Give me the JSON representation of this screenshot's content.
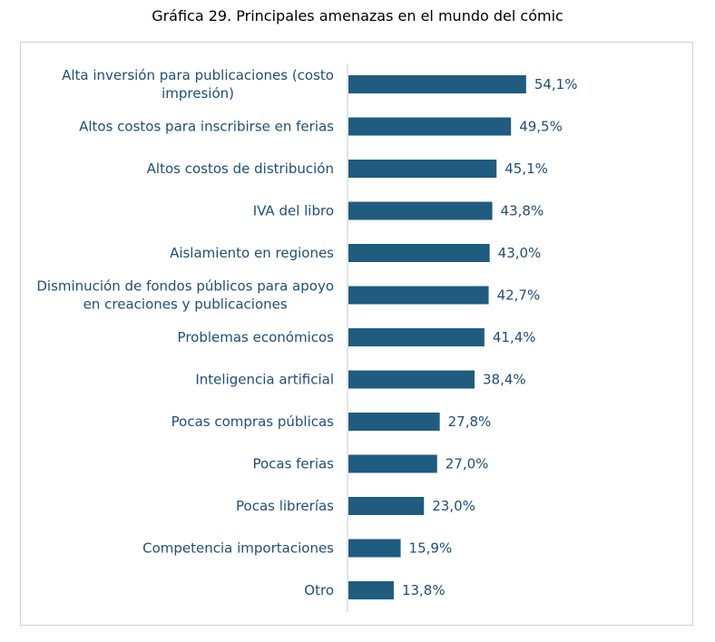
{
  "title": "Gráfica 29. Principales amenazas en el mundo del cómic",
  "chart_data": {
    "type": "bar",
    "orientation": "horizontal",
    "categories": [
      "Alta inversión para publicaciones (costo impresión)",
      "Altos costos para inscribirse en ferias",
      "Altos costos de distribución",
      "IVA del libro",
      "Aislamiento en regiones",
      "Disminución de fondos públicos para apoyo en creaciones y publicaciones",
      "Problemas económicos",
      "Inteligencia artificial",
      "Pocas compras públicas",
      "Pocas ferias",
      "Pocas librerías",
      "Competencia importaciones",
      "Otro"
    ],
    "category_lines": [
      [
        "Alta inversión para publicaciones (costo",
        "impresión)"
      ],
      [
        "Altos costos para inscribirse en ferias"
      ],
      [
        "Altos costos de distribución"
      ],
      [
        "IVA del libro"
      ],
      [
        "Aislamiento en regiones"
      ],
      [
        "Disminución de fondos públicos para apoyo",
        "en creaciones y publicaciones"
      ],
      [
        "Problemas económicos"
      ],
      [
        "Inteligencia artificial"
      ],
      [
        "Pocas compras públicas"
      ],
      [
        "Pocas ferias"
      ],
      [
        "Pocas librerías"
      ],
      [
        "Competencia importaciones"
      ],
      [
        "Otro"
      ]
    ],
    "values": [
      54.1,
      49.5,
      45.1,
      43.8,
      43.0,
      42.7,
      41.4,
      38.4,
      27.8,
      27.0,
      23.0,
      15.9,
      13.8
    ],
    "value_labels": [
      "54,1%",
      "49,5%",
      "45,1%",
      "43,8%",
      "43,0%",
      "42,7%",
      "41,4%",
      "38,4%",
      "27,8%",
      "27,0%",
      "23,0%",
      "15,9%",
      "13,8%"
    ],
    "bar_color": "#1f5c7f",
    "text_color": "#1f4e79",
    "axis_color": "#c8c8c8",
    "grid": false,
    "legend": "none"
  }
}
